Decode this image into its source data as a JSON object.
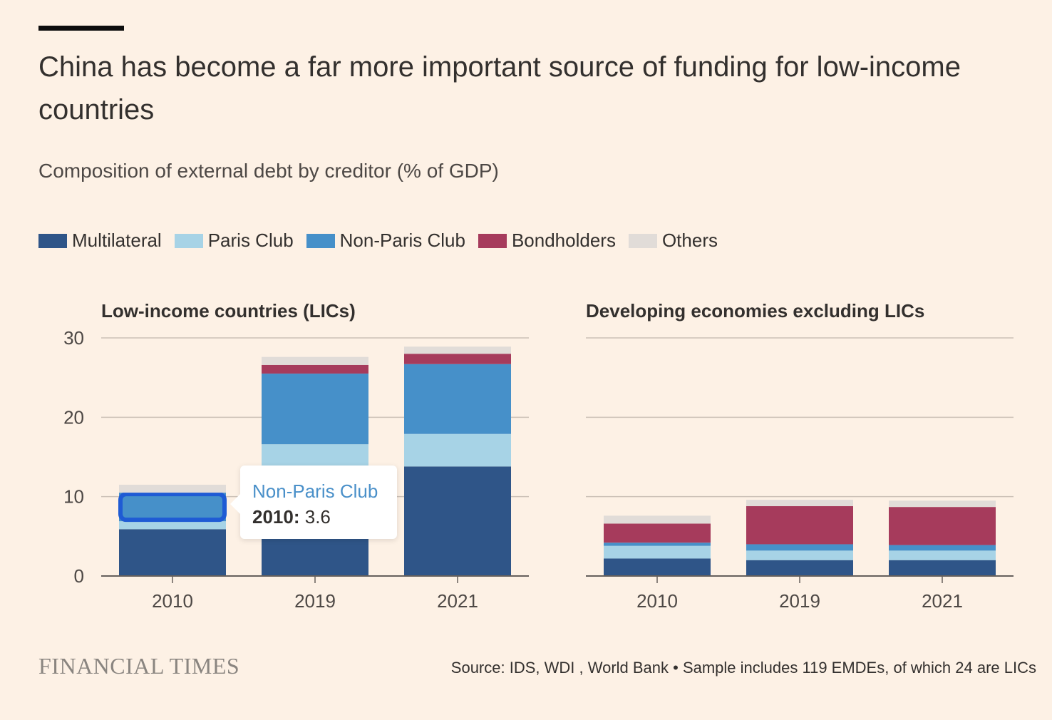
{
  "title": "China has become a far more important source of funding for low-income countries",
  "subtitle": "Composition of external debt by creditor (% of GDP)",
  "footer": {
    "logo": "FINANCIAL TIMES",
    "source": "Source: IDS, WDI , World Bank • Sample includes 119 EMDEs, of which 24 are LICs"
  },
  "tooltip": {
    "series": "Non-Paris Club",
    "year": "2010:",
    "value": "3.6"
  },
  "colors": {
    "Multilateral": "#2f5588",
    "Paris Club": "#a7d3e6",
    "Non-Paris Club": "#4690c9",
    "Bondholders": "#a63b5c",
    "Others": "#e1dcd8",
    "highlight": "#1f5bd4"
  },
  "legend": [
    {
      "name": "Multilateral",
      "color": "#2f5588"
    },
    {
      "name": "Paris Club",
      "color": "#a7d3e6"
    },
    {
      "name": "Non-Paris Club",
      "color": "#4690c9"
    },
    {
      "name": "Bondholders",
      "color": "#a63b5c"
    },
    {
      "name": "Others",
      "color": "#e1dcd8"
    }
  ],
  "chart_data": [
    {
      "type": "bar",
      "stacked": true,
      "title": "Low-income countries (LICs)",
      "categories": [
        "2010",
        "2019",
        "2021"
      ],
      "ylim": [
        0,
        30
      ],
      "yticks": [
        "0",
        "10",
        "20",
        "30"
      ],
      "grid": true,
      "highlight": {
        "series": "Non-Paris Club",
        "category": "2010"
      },
      "series": [
        {
          "name": "Multilateral",
          "values": [
            5.9,
            11.5,
            13.8
          ]
        },
        {
          "name": "Paris Club",
          "values": [
            1.0,
            5.1,
            4.1
          ]
        },
        {
          "name": "Non-Paris Club",
          "values": [
            3.6,
            8.9,
            8.8
          ]
        },
        {
          "name": "Bondholders",
          "values": [
            0.0,
            1.1,
            1.3
          ]
        },
        {
          "name": "Others",
          "values": [
            1.0,
            1.0,
            0.9
          ]
        }
      ]
    },
    {
      "type": "bar",
      "stacked": true,
      "title": "Developing economies excluding LICs",
      "categories": [
        "2010",
        "2019",
        "2021"
      ],
      "ylim": [
        0,
        30
      ],
      "yticks": [],
      "grid": true,
      "series": [
        {
          "name": "Multilateral",
          "values": [
            2.2,
            2.0,
            2.0
          ]
        },
        {
          "name": "Paris Club",
          "values": [
            1.6,
            1.2,
            1.2
          ]
        },
        {
          "name": "Non-Paris Club",
          "values": [
            0.4,
            0.8,
            0.7
          ]
        },
        {
          "name": "Bondholders",
          "values": [
            2.4,
            4.8,
            4.8
          ]
        },
        {
          "name": "Others",
          "values": [
            1.0,
            0.8,
            0.8
          ]
        }
      ]
    }
  ]
}
